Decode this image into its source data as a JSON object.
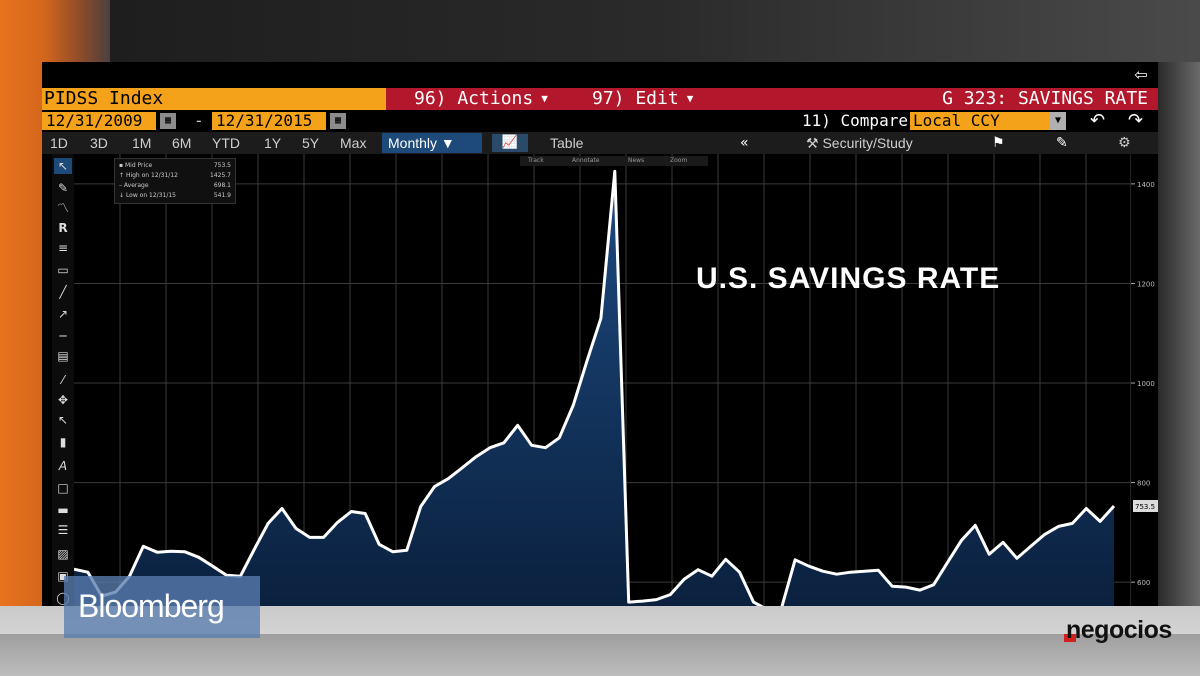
{
  "screen": {
    "ticker": "PIDSS Index",
    "actions_label": "96) Actions",
    "edit_label": "97) Edit",
    "page_title": "G 323: SAVINGS RATE",
    "start_date": "12/31/2009",
    "end_date": "12/31/2015",
    "date_separator": "-",
    "compare_label": "11) Compare",
    "currency": "Local CCY",
    "periods": [
      "1D",
      "3D",
      "1M",
      "6M",
      "YTD",
      "1Y",
      "5Y",
      "Max"
    ],
    "frequency": "Monthly",
    "table_label": "Table",
    "collapse_symbol": "«",
    "study_label": "Security/Study",
    "annotation": "U.S. SAVINGS RATE",
    "legend": [
      {
        "label": "Mid Price",
        "value": "753.5"
      },
      {
        "label": "High on 12/31/12",
        "value": "1425.7"
      },
      {
        "label": "Average",
        "value": "698.1"
      },
      {
        "label": "Low on 12/31/15",
        "value": "541.9"
      }
    ],
    "mini_tools": [
      "Track",
      "Annotate",
      "News",
      "Zoom"
    ],
    "current_value_tag": "753.5"
  },
  "overlays": {
    "bloomberg_logo_text": "Bloomberg",
    "negocios_logo_text": "negocios"
  },
  "colors": {
    "accent_orange": "#f3a21a",
    "header_red": "#b3172b",
    "fill_navy": "#0d2b50",
    "line_white": "#ffffff"
  },
  "chart_data": {
    "type": "area",
    "title": "U.S. SAVINGS RATE",
    "ylim": [
      520,
      1460
    ],
    "yticks": [
      600,
      800,
      1000,
      1200,
      1400
    ],
    "ytick_labels": [
      "600",
      "800",
      "1000",
      "1200",
      "1400"
    ],
    "grid": true,
    "series": [
      {
        "values": [
          626,
          620,
          572,
          580,
          612,
          672,
          660,
          662,
          661,
          650,
          632,
          614,
          612,
          666,
          718,
          748,
          708,
          690,
          690,
          720,
          742,
          738,
          676,
          661,
          664,
          752,
          792,
          808,
          830,
          852,
          870,
          880,
          915,
          875,
          870,
          890,
          955,
          1045,
          1130,
          1425,
          560,
          562,
          565,
          575,
          606,
          625,
          612,
          646,
          620,
          560,
          545,
          546,
          645,
          632,
          622,
          616,
          620,
          622,
          624,
          592,
          590,
          584,
          595,
          640,
          684,
          714,
          656,
          680,
          648,
          672,
          696,
          712,
          718,
          748,
          722,
          753
        ]
      }
    ]
  }
}
